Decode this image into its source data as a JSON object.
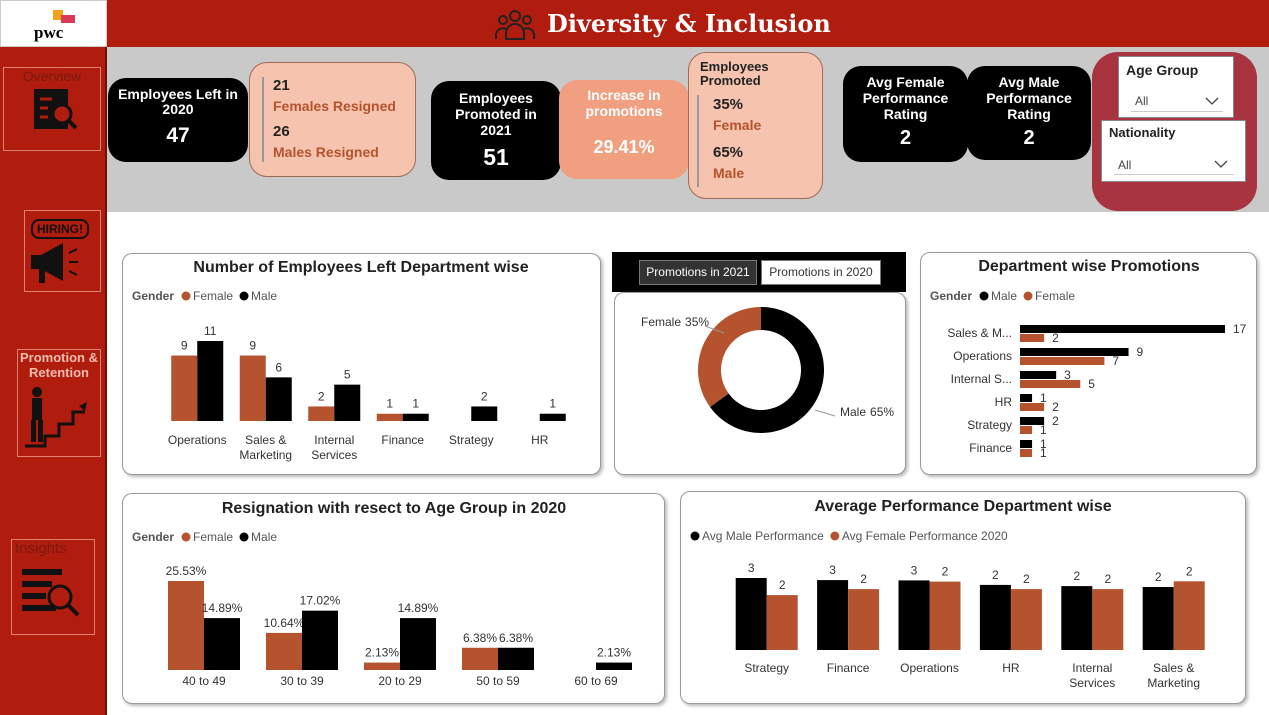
{
  "header": {
    "logo": "pwc",
    "title": "Diversity & Inclusion"
  },
  "sidebar": [
    {
      "label": "Overview"
    },
    {
      "icon_text": "HIRING!"
    },
    {
      "label": "Promotion & Retention"
    },
    {
      "label": "Insights"
    }
  ],
  "kpis": {
    "left_2020": {
      "label": "Employees Left in 2020",
      "value": 47
    },
    "resigned": [
      {
        "value": 21,
        "label": "Females Resigned"
      },
      {
        "value": 26,
        "label": "Males Resigned"
      }
    ],
    "promoted_2021": {
      "label": "Employees Promoted in 2021",
      "value": 51
    },
    "increase": {
      "label": "Increase in promotions",
      "value": "29.41%"
    },
    "promoted_split": {
      "label": "Employees Promoted",
      "lines": [
        {
          "value": "35%",
          "label": "Female"
        },
        {
          "value": "65%",
          "label": "Male"
        }
      ]
    },
    "avg_female": {
      "label": "Avg Female Performance Rating",
      "value": 2
    },
    "avg_male": {
      "label": "Avg Male Performance Rating",
      "value": 2
    }
  },
  "slicers": [
    {
      "title": "Age Group",
      "value": "All"
    },
    {
      "title": "Nationality",
      "value": "All"
    }
  ],
  "tabs": [
    "Promotions in 2021",
    "Promotions in 2020"
  ],
  "chart_data": [
    {
      "type": "bar",
      "title": "Number of Employees Left Department wise",
      "legend_title": "Gender",
      "categories": [
        "Operations",
        "Sales & Marketing",
        "Internal Services",
        "Finance",
        "Strategy",
        "HR"
      ],
      "series": [
        {
          "name": "Female",
          "color": "#b5532e",
          "values": [
            9,
            9,
            2,
            1,
            null,
            null
          ]
        },
        {
          "name": "Male",
          "color": "#000000",
          "values": [
            11,
            6,
            5,
            1,
            2,
            1
          ]
        }
      ]
    },
    {
      "type": "donut",
      "categories": [
        "Female",
        "Male"
      ],
      "values": [
        35,
        65
      ],
      "value_labels": [
        "35%",
        "65%"
      ],
      "colors": [
        "#b5532e",
        "#000000"
      ]
    },
    {
      "type": "hbar",
      "title": "Department wise Promotions",
      "legend_title": "Gender",
      "categories": [
        "Sales & M...",
        "Operations",
        "Internal S...",
        "HR",
        "Strategy",
        "Finance"
      ],
      "series": [
        {
          "name": "Male",
          "color": "#000000",
          "values": [
            17,
            9,
            3,
            1,
            2,
            1
          ]
        },
        {
          "name": "Female",
          "color": "#b5532e",
          "values": [
            2,
            7,
            5,
            2,
            1,
            1
          ]
        }
      ]
    },
    {
      "type": "bar",
      "title": "Resignation with resect to Age Group in 2020",
      "legend_title": "Gender",
      "categories": [
        "40 to 49",
        "30 to 39",
        "20 to 29",
        "50 to 59",
        "60 to 69"
      ],
      "series": [
        {
          "name": "Female",
          "color": "#b5532e",
          "values": [
            25.53,
            10.64,
            2.13,
            6.38,
            null
          ],
          "value_labels": [
            "25.53%",
            "10.64%",
            "2.13%",
            "6.38%",
            null
          ]
        },
        {
          "name": "Male",
          "color": "#000000",
          "values": [
            14.89,
            17.02,
            14.89,
            6.38,
            2.13
          ],
          "value_labels": [
            "14.89%",
            "17.02%",
            "14.89%",
            "6.38%",
            "2.13%"
          ]
        }
      ]
    },
    {
      "type": "bar",
      "title": "Average Performance Department wise",
      "categories": [
        "Strategy",
        "Finance",
        "Operations",
        "HR",
        "Internal Services",
        "Sales & Marketing"
      ],
      "ylim": [
        0.2,
        2.7
      ],
      "series": [
        {
          "name": "Avg Male Performance",
          "color": "#000000",
          "values": [
            2.6,
            2.53,
            2.52,
            2.37,
            2.33,
            2.3
          ],
          "value_labels": [
            "3",
            "3",
            "3",
            "2",
            "2",
            "2"
          ]
        },
        {
          "name": "Avg Female Performance 2020",
          "color": "#b5532e",
          "values": [
            2.03,
            2.23,
            2.48,
            2.23,
            2.23,
            2.49
          ],
          "value_labels": [
            "2",
            "2",
            "2",
            "2",
            "2",
            "2"
          ]
        }
      ]
    }
  ]
}
